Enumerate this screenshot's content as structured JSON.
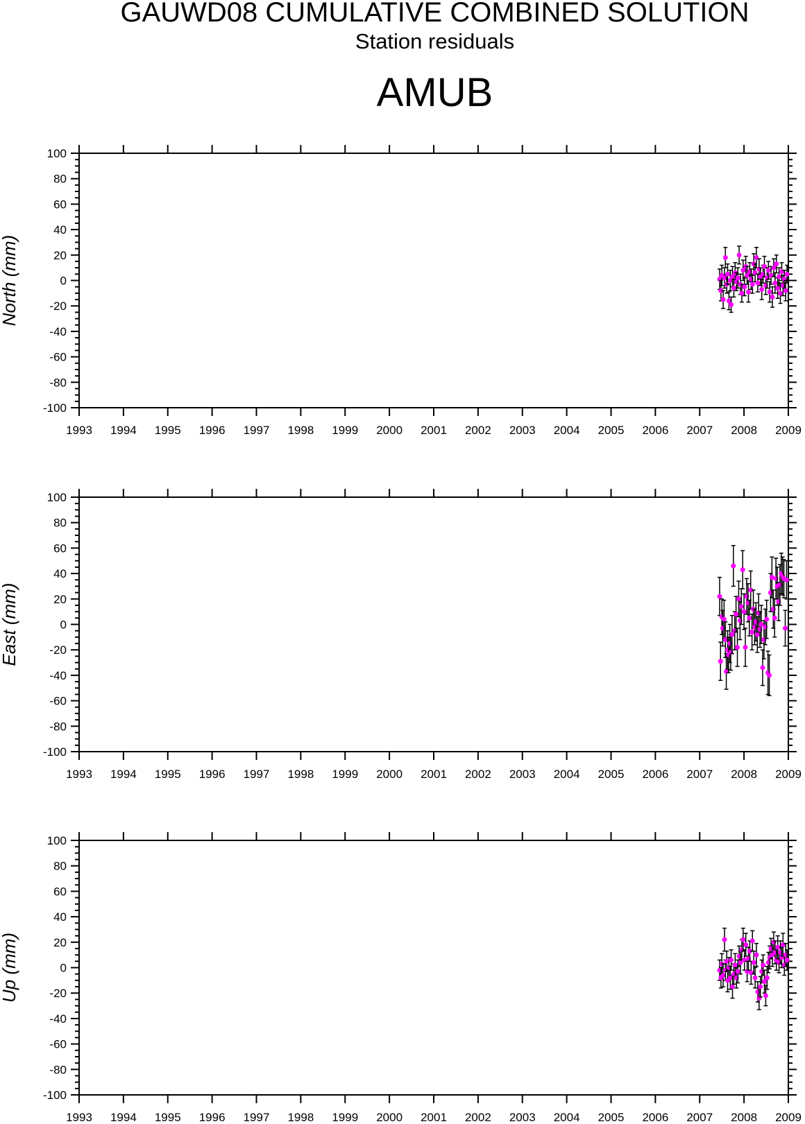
{
  "header": {
    "title": "GAUWD08 CUMULATIVE COMBINED SOLUTION",
    "subtitle": "Station residuals",
    "station": "AMUB"
  },
  "colors": {
    "point": "#ff00ff",
    "error_bar": "#000000",
    "axis": "#000000"
  },
  "chart_data": [
    {
      "type": "scatter",
      "ylabel": "North (mm)",
      "ylim": [
        -100,
        100
      ],
      "xlim": [
        1993,
        2009
      ],
      "x_ticks": [
        "1993",
        "1994",
        "1995",
        "1996",
        "1997",
        "1998",
        "1999",
        "2000",
        "2001",
        "2002",
        "2003",
        "2004",
        "2005",
        "2006",
        "2007",
        "2008",
        "2009"
      ],
      "y_ticks": [
        "100",
        "80",
        "60",
        "40",
        "20",
        "0",
        "-20",
        "-40",
        "-60",
        "-80",
        "-100"
      ],
      "error_bars": true,
      "points": [
        [
          2007.45,
          1,
          8
        ],
        [
          2007.48,
          -8,
          8
        ],
        [
          2007.5,
          4,
          8
        ],
        [
          2007.53,
          -15,
          7
        ],
        [
          2007.56,
          2,
          8
        ],
        [
          2007.58,
          18,
          8
        ],
        [
          2007.61,
          -3,
          7
        ],
        [
          2007.63,
          5,
          8
        ],
        [
          2007.66,
          -16,
          7
        ],
        [
          2007.69,
          0,
          8
        ],
        [
          2007.71,
          -19,
          6
        ],
        [
          2007.74,
          3,
          8
        ],
        [
          2007.77,
          -6,
          7
        ],
        [
          2007.8,
          6,
          8
        ],
        [
          2007.83,
          -1,
          7
        ],
        [
          2007.86,
          2,
          8
        ],
        [
          2007.89,
          20,
          7
        ],
        [
          2007.92,
          -3,
          8
        ],
        [
          2007.95,
          -10,
          7
        ],
        [
          2007.98,
          8,
          8
        ],
        [
          2008.01,
          -5,
          7
        ],
        [
          2008.04,
          11,
          8
        ],
        [
          2008.07,
          4,
          7
        ],
        [
          2008.1,
          -9,
          8
        ],
        [
          2008.13,
          7,
          7
        ],
        [
          2008.16,
          1,
          8
        ],
        [
          2008.19,
          -3,
          7
        ],
        [
          2008.22,
          13,
          8
        ],
        [
          2008.25,
          6,
          7
        ],
        [
          2008.28,
          18,
          8
        ],
        [
          2008.31,
          -2,
          7
        ],
        [
          2008.34,
          9,
          8
        ],
        [
          2008.37,
          3,
          7
        ],
        [
          2008.4,
          -7,
          8
        ],
        [
          2008.43,
          5,
          7
        ],
        [
          2008.46,
          11,
          8
        ],
        [
          2008.49,
          -4,
          7
        ],
        [
          2008.52,
          2,
          8
        ],
        [
          2008.55,
          8,
          7
        ],
        [
          2008.58,
          -9,
          8
        ],
        [
          2008.61,
          4,
          7
        ],
        [
          2008.64,
          -13,
          8
        ],
        [
          2008.67,
          10,
          7
        ],
        [
          2008.7,
          -2,
          8
        ],
        [
          2008.73,
          13,
          7
        ],
        [
          2008.76,
          -6,
          8
        ],
        [
          2008.79,
          3,
          7
        ],
        [
          2008.82,
          -10,
          8
        ],
        [
          2008.85,
          7,
          7
        ],
        [
          2008.88,
          -4,
          8
        ],
        [
          2008.91,
          1,
          7
        ],
        [
          2008.94,
          -8,
          8
        ],
        [
          2008.97,
          5,
          7
        ]
      ]
    },
    {
      "type": "scatter",
      "ylabel": "East (mm)",
      "ylim": [
        -100,
        100
      ],
      "xlim": [
        1993,
        2009
      ],
      "x_ticks": [
        "1993",
        "1994",
        "1995",
        "1996",
        "1997",
        "1998",
        "1999",
        "2000",
        "2001",
        "2002",
        "2003",
        "2004",
        "2005",
        "2006",
        "2007",
        "2008",
        "2009"
      ],
      "y_ticks": [
        "100",
        "80",
        "60",
        "40",
        "20",
        "0",
        "-20",
        "-40",
        "-60",
        "-80",
        "-100"
      ],
      "error_bars": true,
      "points": [
        [
          2007.45,
          22,
          15
        ],
        [
          2007.47,
          -29,
          15
        ],
        [
          2007.5,
          6,
          14
        ],
        [
          2007.52,
          -3,
          14
        ],
        [
          2007.55,
          4,
          15
        ],
        [
          2007.58,
          -12,
          14
        ],
        [
          2007.6,
          -37,
          14
        ],
        [
          2007.63,
          -20,
          15
        ],
        [
          2007.65,
          -24,
          14
        ],
        [
          2007.68,
          -15,
          15
        ],
        [
          2007.7,
          -22,
          14
        ],
        [
          2007.73,
          -8,
          15
        ],
        [
          2007.76,
          46,
          16
        ],
        [
          2007.79,
          -5,
          15
        ],
        [
          2007.82,
          8,
          14
        ],
        [
          2007.85,
          -18,
          15
        ],
        [
          2007.88,
          20,
          14
        ],
        [
          2007.91,
          3,
          15
        ],
        [
          2007.94,
          14,
          14
        ],
        [
          2007.97,
          43,
          15
        ],
        [
          2008.0,
          10,
          14
        ],
        [
          2008.03,
          -18,
          15
        ],
        [
          2008.06,
          22,
          14
        ],
        [
          2008.09,
          17,
          15
        ],
        [
          2008.12,
          5,
          14
        ],
        [
          2008.15,
          27,
          15
        ],
        [
          2008.18,
          -6,
          14
        ],
        [
          2008.21,
          12,
          15
        ],
        [
          2008.24,
          -2,
          14
        ],
        [
          2008.27,
          2,
          15
        ],
        [
          2008.3,
          -8,
          14
        ],
        [
          2008.33,
          9,
          15
        ],
        [
          2008.36,
          -4,
          14
        ],
        [
          2008.39,
          0,
          15
        ],
        [
          2008.42,
          -34,
          14
        ],
        [
          2008.45,
          -12,
          15
        ],
        [
          2008.48,
          -2,
          14
        ],
        [
          2008.51,
          4,
          15
        ],
        [
          2008.54,
          -38,
          17
        ],
        [
          2008.57,
          -40,
          16
        ],
        [
          2008.6,
          25,
          15
        ],
        [
          2008.63,
          37,
          16
        ],
        [
          2008.66,
          12,
          15
        ],
        [
          2008.69,
          5,
          15
        ],
        [
          2008.72,
          36,
          16
        ],
        [
          2008.75,
          30,
          15
        ],
        [
          2008.78,
          18,
          15
        ],
        [
          2008.81,
          31,
          16
        ],
        [
          2008.84,
          40,
          16
        ],
        [
          2008.87,
          38,
          15
        ],
        [
          2008.9,
          36,
          15
        ],
        [
          2008.93,
          -3,
          14
        ],
        [
          2008.96,
          35,
          15
        ]
      ]
    },
    {
      "type": "scatter",
      "ylabel": "Up (mm)",
      "ylim": [
        -100,
        100
      ],
      "xlim": [
        1993,
        2009
      ],
      "x_ticks": [
        "1993",
        "1994",
        "1995",
        "1996",
        "1997",
        "1998",
        "1999",
        "2000",
        "2001",
        "2002",
        "2003",
        "2004",
        "2005",
        "2006",
        "2007",
        "2008",
        "2009"
      ],
      "y_ticks": [
        "100",
        "80",
        "60",
        "40",
        "20",
        "0",
        "-20",
        "-40",
        "-60",
        "-80",
        "-100"
      ],
      "error_bars": true,
      "points": [
        [
          2007.45,
          -2,
          8
        ],
        [
          2007.48,
          -8,
          8
        ],
        [
          2007.5,
          3,
          8
        ],
        [
          2007.53,
          -6,
          9
        ],
        [
          2007.56,
          22,
          9
        ],
        [
          2007.58,
          -2,
          8
        ],
        [
          2007.61,
          5,
          8
        ],
        [
          2007.63,
          -10,
          9
        ],
        [
          2007.66,
          0,
          8
        ],
        [
          2007.69,
          -8,
          9
        ],
        [
          2007.71,
          6,
          8
        ],
        [
          2007.74,
          -15,
          9
        ],
        [
          2007.77,
          -5,
          8
        ],
        [
          2007.8,
          2,
          9
        ],
        [
          2007.83,
          -8,
          8
        ],
        [
          2007.86,
          -3,
          9
        ],
        [
          2007.89,
          9,
          8
        ],
        [
          2007.92,
          4,
          9
        ],
        [
          2007.95,
          14,
          8
        ],
        [
          2007.98,
          22,
          9
        ],
        [
          2008.01,
          6,
          8
        ],
        [
          2008.04,
          18,
          9
        ],
        [
          2008.07,
          -3,
          8
        ],
        [
          2008.1,
          7,
          9
        ],
        [
          2008.13,
          13,
          8
        ],
        [
          2008.16,
          -4,
          9
        ],
        [
          2008.19,
          21,
          8
        ],
        [
          2008.22,
          4,
          9
        ],
        [
          2008.25,
          -8,
          8
        ],
        [
          2008.28,
          10,
          9
        ],
        [
          2008.31,
          -19,
          8
        ],
        [
          2008.34,
          -24,
          9
        ],
        [
          2008.37,
          -15,
          8
        ],
        [
          2008.4,
          -3,
          9
        ],
        [
          2008.43,
          2,
          8
        ],
        [
          2008.46,
          -11,
          9
        ],
        [
          2008.49,
          -22,
          8
        ],
        [
          2008.52,
          -8,
          9
        ],
        [
          2008.55,
          4,
          8
        ],
        [
          2008.58,
          8,
          9
        ],
        [
          2008.61,
          15,
          8
        ],
        [
          2008.64,
          10,
          9
        ],
        [
          2008.67,
          20,
          8
        ],
        [
          2008.7,
          12,
          9
        ],
        [
          2008.73,
          6,
          8
        ],
        [
          2008.76,
          16,
          9
        ],
        [
          2008.79,
          4,
          8
        ],
        [
          2008.82,
          12,
          9
        ],
        [
          2008.85,
          8,
          8
        ],
        [
          2008.88,
          18,
          9
        ],
        [
          2008.91,
          2,
          8
        ],
        [
          2008.94,
          10,
          9
        ],
        [
          2008.97,
          6,
          8
        ]
      ]
    }
  ]
}
